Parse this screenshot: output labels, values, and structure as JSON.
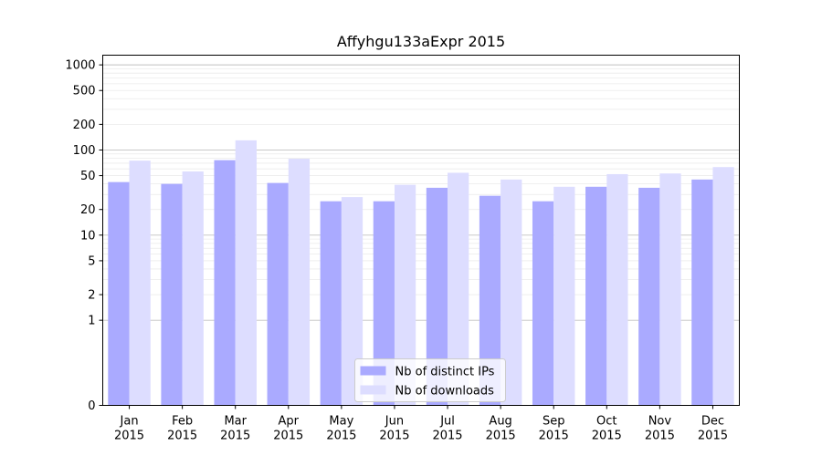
{
  "chart_data": {
    "type": "bar",
    "title": "Affyhgu133aExpr 2015",
    "categories": [
      "Jan\n2015",
      "Feb\n2015",
      "Mar\n2015",
      "Apr\n2015",
      "May\n2015",
      "Jun\n2015",
      "Jul\n2015",
      "Aug\n2015",
      "Sep\n2015",
      "Oct\n2015",
      "Nov\n2015",
      "Dec\n2015"
    ],
    "series": [
      {
        "name": "Nb of distinct IPs",
        "color": "#aaaaff",
        "values": [
          42,
          40,
          76,
          41,
          25,
          25,
          36,
          29,
          25,
          37,
          36,
          45
        ]
      },
      {
        "name": "Nb of downloads",
        "color": "#ddddff",
        "values": [
          75,
          56,
          130,
          79,
          28,
          39,
          54,
          45,
          37,
          52,
          53,
          63
        ]
      }
    ],
    "yscale": "symlog",
    "yticks": [
      0,
      1,
      2,
      5,
      10,
      20,
      50,
      100,
      200,
      500,
      1000
    ],
    "ylim": [
      0,
      1300
    ],
    "legend_position": "lower center",
    "grid": true
  }
}
